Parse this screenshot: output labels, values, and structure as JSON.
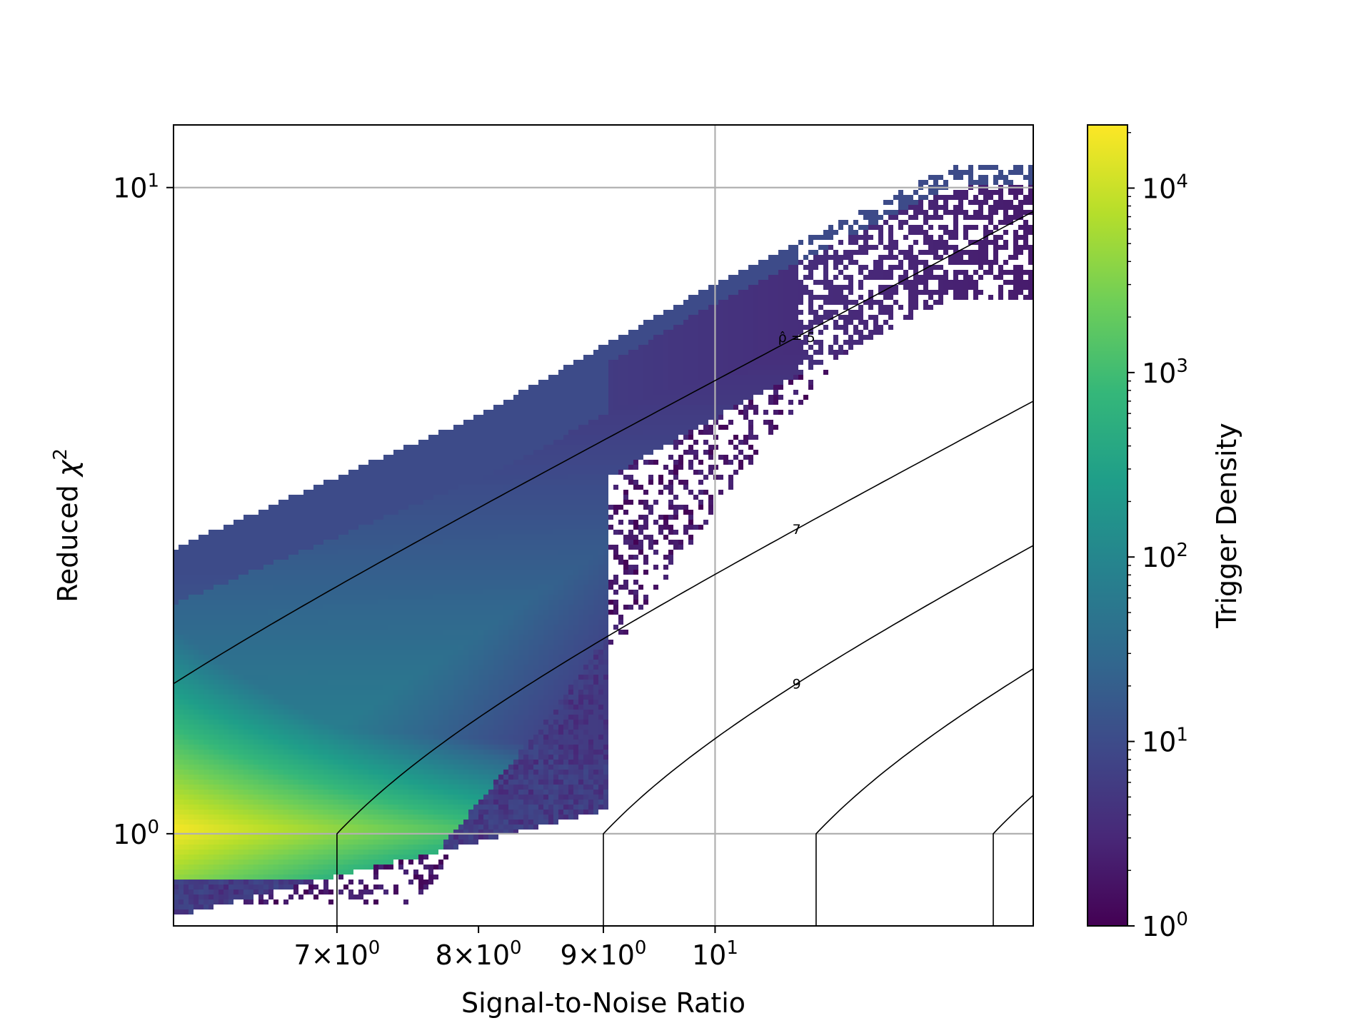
{
  "chart_data": {
    "type": "heatmap",
    "subtype": "hexbin-density",
    "title": "",
    "xlabel": "Signal-to-Noise Ratio",
    "ylabel": "Reduced χ²",
    "x_scale": "log",
    "y_scale": "log",
    "xlim": [
      6.0,
      13.5
    ],
    "ylim": [
      0.72,
      12.5
    ],
    "grid": true,
    "x_ticks": [
      {
        "value": 7,
        "mant": "7",
        "exp": "0"
      },
      {
        "value": 8,
        "mant": "8",
        "exp": "0"
      },
      {
        "value": 9,
        "mant": "9",
        "exp": "0"
      },
      {
        "value": 10,
        "mant": "",
        "exp": "1"
      }
    ],
    "y_ticks": [
      {
        "value": 1,
        "exp": "0"
      },
      {
        "value": 10,
        "exp": "1"
      }
    ],
    "colorbar": {
      "label": "Trigger Density",
      "scale": "log",
      "range": [
        1,
        22000
      ],
      "colormap": "viridis",
      "ticks": [
        {
          "value": 1,
          "exp": "0"
        },
        {
          "value": 10,
          "exp": "1"
        },
        {
          "value": 100,
          "exp": "2"
        },
        {
          "value": 1000,
          "exp": "3"
        },
        {
          "value": 10000,
          "exp": "4"
        }
      ]
    },
    "contours": [
      {
        "value": 5,
        "label": "ρ̂ = 5",
        "label_x": 10.8
      },
      {
        "value": 7,
        "label": "7",
        "label_x": 10.8
      },
      {
        "value": 9,
        "label": "9",
        "label_x": 10.8
      },
      {
        "value": 11,
        "label": ""
      },
      {
        "value": 13,
        "label": ""
      }
    ],
    "density_band": {
      "peak": {
        "snr": 6.0,
        "chi2": 1.02,
        "density": 22000
      },
      "upper_edge": [
        [
          6.0,
          2.8
        ],
        [
          8.0,
          4.5
        ],
        [
          10.0,
          7.2
        ],
        [
          12.5,
          11.0
        ]
      ],
      "lower_edge": [
        [
          6.0,
          0.75
        ],
        [
          7.0,
          0.87
        ],
        [
          8.0,
          0.98
        ],
        [
          9.0,
          1.1
        ]
      ],
      "sparse_tail_right_edge": [
        [
          7.5,
          0.85
        ],
        [
          8.5,
          1.5
        ],
        [
          9.5,
          2.7
        ],
        [
          10.5,
          4.5
        ],
        [
          12.5,
          9.0
        ]
      ]
    }
  },
  "colors": {
    "axis": "#000000",
    "grid": "#b0b0b0",
    "contour": "#000000",
    "background": "#ffffff"
  }
}
